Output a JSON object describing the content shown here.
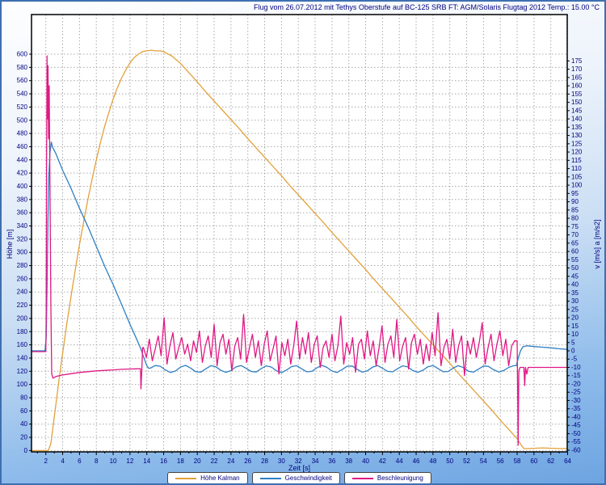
{
  "window": {
    "title": "Flug vom 26.07.2012 mit Tethys Oberstufe auf BC-125 SRB FT: AGM/Solaris Flugtag 2012 Temp.: 15.00 °C"
  },
  "chart_data": {
    "type": "line",
    "title": "Flug vom 26.07.2012 mit Tethys Oberstufe auf BC-125 SRB FT: AGM/Solaris Flugtag 2012 Temp.: 15.00 °C",
    "legend_position": "bottom",
    "grid": "dashed",
    "colors": {
      "text": "#000080",
      "grid": "#a9a9a9",
      "plot_background": "#ffffff",
      "page_background": "#8fbceb",
      "border": "#3e6fb0"
    },
    "axes": {
      "x": {
        "label": "Zeit [s]",
        "min": 0.3,
        "max": 63.95,
        "tick_start": 2,
        "tick_step": 2,
        "tick_end": 64,
        "minor_step": 1
      },
      "y_left": {
        "label": "Höhe [m]",
        "min": -2,
        "max": 660,
        "tick_start": 0,
        "tick_step": 20,
        "tick_end": 600
      },
      "y_right": {
        "label": "v [m/s]  a [m/s2]",
        "min": -61,
        "max": 203,
        "tick_start": -60,
        "tick_step": 5,
        "tick_end": 175
      }
    },
    "series": [
      {
        "name": "Höhe Kalman",
        "color": "#e2a13b",
        "axis": "left",
        "unit": "m",
        "parts": [
          {
            "points": [
              [
                0.3,
                0
              ],
              [
                2.3,
                0
              ],
              [
                2.6,
                11
              ],
              [
                3,
                50
              ],
              [
                3.5,
                100
              ],
              [
                4,
                147
              ],
              [
                4.5,
                192
              ],
              [
                5,
                234
              ],
              [
                5.5,
                274
              ],
              [
                6,
                312
              ],
              [
                6.5,
                347
              ],
              [
                7,
                380
              ],
              [
                7.5,
                411
              ],
              [
                8,
                440
              ],
              [
                8.5,
                467
              ],
              [
                9,
                491
              ],
              [
                9.5,
                512
              ],
              [
                10,
                532
              ],
              [
                10.5,
                549
              ],
              [
                11,
                564
              ],
              [
                11.5,
                576
              ],
              [
                12,
                587
              ],
              [
                12.5,
                595
              ],
              [
                13,
                600
              ],
              [
                13.5,
                604
              ],
              [
                14,
                605
              ],
              [
                14.5,
                606
              ],
              [
                15,
                605
              ],
              [
                15.5,
                605
              ],
              [
                16,
                604
              ],
              [
                17,
                597
              ],
              [
                18,
                586
              ],
              [
                19,
                572
              ],
              [
                20,
                558
              ],
              [
                21,
                543
              ],
              [
                22,
                529
              ],
              [
                23,
                515
              ],
              [
                24,
                501
              ],
              [
                25,
                487
              ],
              [
                26,
                472
              ],
              [
                27,
                458
              ],
              [
                28,
                444
              ],
              [
                29,
                430
              ],
              [
                30,
                416
              ],
              [
                31,
                401
              ],
              [
                32,
                387
              ],
              [
                33,
                373
              ],
              [
                34,
                359
              ],
              [
                35,
                345
              ],
              [
                36,
                330
              ],
              [
                37,
                316
              ],
              [
                38,
                302
              ],
              [
                39,
                288
              ],
              [
                40,
                274
              ],
              [
                41,
                259
              ],
              [
                42,
                245
              ],
              [
                43,
                231
              ],
              [
                44,
                217
              ],
              [
                45,
                203
              ],
              [
                46,
                188
              ],
              [
                47,
                174
              ],
              [
                48,
                160
              ],
              [
                49,
                146
              ],
              [
                50,
                132
              ],
              [
                51,
                117
              ],
              [
                52,
                103
              ],
              [
                53,
                89
              ],
              [
                54,
                75
              ],
              [
                55,
                61
              ],
              [
                56,
                46
              ],
              [
                57,
                32
              ],
              [
                58,
                18
              ],
              [
                58.5,
                8
              ],
              [
                58.8,
                3
              ],
              [
                59.5,
                3
              ],
              [
                61,
                4
              ],
              [
                63,
                3
              ],
              [
                64,
                3
              ]
            ]
          }
        ]
      },
      {
        "name": "Geschwindigkeit",
        "color": "#2e7fc4",
        "axis": "right",
        "unit": "m/s",
        "parts": [
          {
            "points": [
              [
                0.3,
                0
              ],
              [
                1.9,
                0
              ],
              [
                2.05,
                8
              ],
              [
                2.15,
                40
              ],
              [
                2.25,
                78
              ],
              [
                2.35,
                105
              ],
              [
                2.5,
                120
              ],
              [
                2.65,
                126
              ],
              [
                2.8,
                123
              ],
              [
                3.2,
                119
              ],
              [
                4,
                109
              ],
              [
                5,
                98
              ],
              [
                6,
                86
              ],
              [
                7,
                75
              ],
              [
                8,
                63
              ],
              [
                9,
                51
              ],
              [
                10,
                40
              ],
              [
                11,
                28
              ],
              [
                12,
                16
              ],
              [
                12.8,
                7
              ],
              [
                13.3,
                1
              ],
              [
                13.7,
                -5
              ],
              [
                14,
                -9
              ],
              [
                14.2,
                -10.5
              ]
            ]
          },
          {
            "start": 14.4,
            "step": 0.6,
            "values": [
              -10.5,
              -8.9,
              -9.3,
              -11.5,
              -13.1,
              -12.2,
              -9.8,
              -8.8,
              -10.4,
              -12.6,
              -12.9,
              -10.9,
              -9.0,
              -9.6,
              -11.8,
              -13.0,
              -11.9,
              -9.7,
              -8.9,
              -10.6,
              -12.5,
              -12.8,
              -10.7,
              -9.1,
              -9.8,
              -12.0,
              -13.2,
              -11.6,
              -9.5,
              -9.0,
              -10.9,
              -12.7,
              -12.4,
              -10.3,
              -8.8,
              -10.0,
              -12.2,
              -13.1,
              -11.3,
              -9.3,
              -9.2,
              -11.2,
              -12.9,
              -12.1,
              -9.9,
              -8.9,
              -10.5,
              -12.4,
              -12.7,
              -10.8,
              -9.1,
              -9.7,
              -11.9,
              -13.0,
              -11.7,
              -9.6,
              -8.9,
              -10.7,
              -12.6,
              -12.5,
              -10.4,
              -9.0,
              -10.1,
              -12.3,
              -12.9,
              -11.1,
              -9.2,
              -9.4,
              -11.4,
              -12.8,
              -11.9,
              -10.0,
              -9.0
            ]
          },
          {
            "points": [
              [
                57.9,
                -9
              ],
              [
                58.15,
                -4
              ],
              [
                58.4,
                0
              ],
              [
                58.7,
                2.5
              ],
              [
                59.2,
                3
              ],
              [
                60,
                2.6
              ],
              [
                61,
                2.2
              ],
              [
                62,
                1.8
              ],
              [
                63,
                1.2
              ],
              [
                64,
                0.9
              ]
            ]
          }
        ]
      },
      {
        "name": "Beschleunigung",
        "color": "#e01884",
        "axis": "right",
        "unit": "m/s2",
        "parts": [
          {
            "points": [
              [
                0.3,
                -0.5
              ],
              [
                2.0,
                -0.5
              ],
              [
                2.05,
                20
              ],
              [
                2.1,
                120
              ],
              [
                2.14,
                178
              ],
              [
                2.2,
                140
              ],
              [
                2.26,
                172
              ],
              [
                2.33,
                128
              ],
              [
                2.4,
                160
              ],
              [
                2.5,
                95
              ],
              [
                2.6,
                25
              ],
              [
                2.7,
                -14
              ],
              [
                2.85,
                -16.5
              ],
              [
                3.2,
                -15.5
              ],
              [
                4,
                -14.6
              ],
              [
                5,
                -13.8
              ],
              [
                6,
                -13.1
              ],
              [
                7,
                -12.6
              ],
              [
                8,
                -12.1
              ],
              [
                9,
                -11.8
              ],
              [
                10,
                -11.5
              ],
              [
                11,
                -11.2
              ],
              [
                12,
                -11.0
              ],
              [
                12.7,
                -10.9
              ],
              [
                13.25,
                -10.8
              ],
              [
                13.3,
                -23
              ],
              [
                13.4,
                -12
              ],
              [
                13.5,
                2
              ]
            ]
          },
          {
            "start": 13.6,
            "step": 0.35,
            "values": [
              2,
              -4,
              7,
              -6,
              1,
              9,
              -3,
              20,
              -8,
              3,
              11,
              -5,
              2,
              8,
              -2,
              4,
              -6,
              6,
              -1,
              12,
              -7,
              3,
              9,
              -4,
              16,
              -9,
              5,
              10,
              -2,
              7,
              -12,
              3,
              8,
              -5,
              22,
              -7,
              2,
              10,
              -4,
              6,
              -9,
              4,
              12,
              -6,
              1,
              9,
              -14,
              5,
              -3,
              7,
              -8,
              3,
              18,
              -5,
              8,
              -2,
              11,
              -7,
              4,
              9,
              -10,
              2,
              6,
              -4,
              10,
              -6,
              3,
              21,
              -8,
              5,
              -2,
              8,
              -13,
              4,
              7,
              -5,
              12,
              -3,
              6,
              -9,
              2,
              15,
              -7,
              4,
              9,
              -4,
              19,
              -6,
              3,
              8,
              -11,
              5,
              10,
              -2,
              7,
              -8,
              4,
              -6,
              11,
              -3,
              23,
              -9,
              2,
              7,
              -5,
              13,
              -7,
              3,
              9,
              -15,
              6,
              -2,
              8,
              -4,
              5,
              17,
              -8,
              2,
              10,
              -6,
              4,
              12,
              -3,
              7,
              -9,
              3,
              6
            ]
          },
          {
            "points": [
              [
                58.0,
                6
              ],
              [
                58.07,
                -30
              ],
              [
                58.12,
                -57
              ],
              [
                58.2,
                -12
              ],
              [
                58.35,
                -10
              ],
              [
                58.8,
                -10
              ],
              [
                58.9,
                -21
              ],
              [
                59.0,
                -10
              ],
              [
                59.15,
                -14
              ],
              [
                59.3,
                -10
              ],
              [
                64,
                -10
              ]
            ]
          }
        ]
      }
    ]
  }
}
